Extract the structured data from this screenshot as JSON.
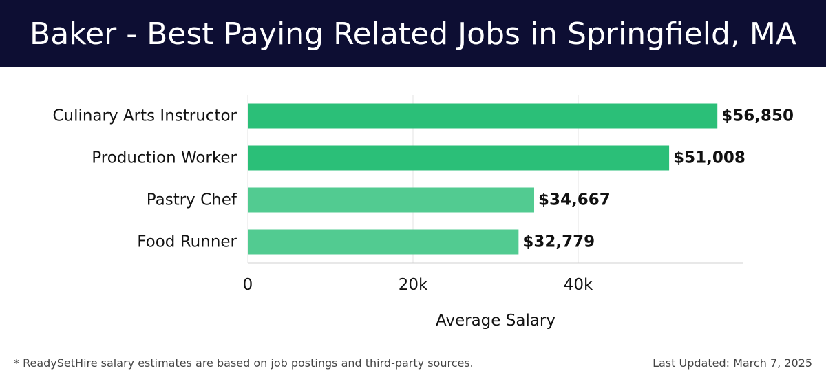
{
  "header": {
    "title": "Baker - Best Paying Related Jobs in Springfield, MA"
  },
  "chart_data": {
    "type": "bar",
    "orientation": "horizontal",
    "categories": [
      "Culinary Arts Instructor",
      "Production Worker",
      "Pastry Chef",
      "Food Runner"
    ],
    "values": [
      56850,
      51008,
      34667,
      32779
    ],
    "value_labels": [
      "$56,850",
      "$51,008",
      "$34,667",
      "$32,779"
    ],
    "bar_colors": [
      "#2bbf78",
      "#2bbf78",
      "#52cb91",
      "#52cb91"
    ],
    "xlabel": "Average Salary",
    "ylabel": "",
    "xlim": [
      0,
      60000
    ],
    "xticks": [
      0,
      20000,
      40000
    ],
    "xtick_labels": [
      "0",
      "20k",
      "40k"
    ],
    "grid": true
  },
  "footer": {
    "note": "* ReadySetHire salary estimates are based on job postings and third-party sources.",
    "updated": "Last Updated: March 7, 2025"
  }
}
